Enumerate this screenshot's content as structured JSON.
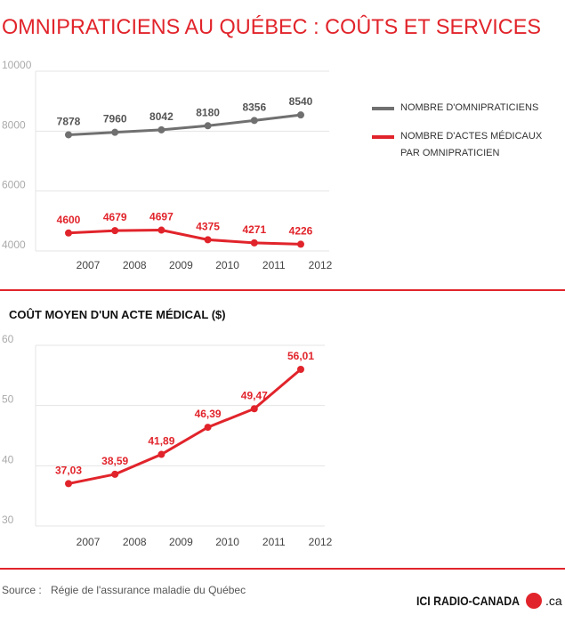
{
  "title": "OMNIPRATICIENS AU QUÉBEC : COÛTS ET SERVICES",
  "chart_data": [
    {
      "type": "line",
      "categories": [
        "2007",
        "2008",
        "2009",
        "2010",
        "2011",
        "2012"
      ],
      "series": [
        {
          "name": "NOMBRE D'OMNIPRATICIENS",
          "color": "#707070",
          "values": [
            7878,
            7960,
            8042,
            8180,
            8356,
            8540
          ]
        },
        {
          "name": "NOMBRE D'ACTES MÉDICAUX PAR OMNIPRATICIEN",
          "color": "#e1242b",
          "values": [
            4600,
            4679,
            4697,
            4375,
            4271,
            4226
          ]
        }
      ],
      "ylim": [
        4000,
        10000
      ],
      "yticks": [
        4000,
        6000,
        8000,
        10000
      ],
      "grid": true,
      "legend": "right"
    },
    {
      "type": "line",
      "title": "COÛT MOYEN D'UN ACTE MÉDICAL ($)",
      "categories": [
        "2007",
        "2008",
        "2009",
        "2010",
        "2011",
        "2012"
      ],
      "color": "#e1242b",
      "values": [
        37.03,
        38.59,
        41.89,
        46.39,
        49.47,
        56.01
      ],
      "value_labels": [
        "37,03",
        "38,59",
        "41,89",
        "46,39",
        "49,47",
        "56,01"
      ],
      "ylim": [
        30,
        60
      ],
      "yticks": [
        30,
        40,
        50,
        60
      ],
      "grid": true
    }
  ],
  "source": {
    "label": "Source :",
    "text": "Régie de l'assurance maladie du Québec"
  },
  "branding": {
    "name": "ICI RADIO-CANADA",
    "suffix": ".ca"
  }
}
